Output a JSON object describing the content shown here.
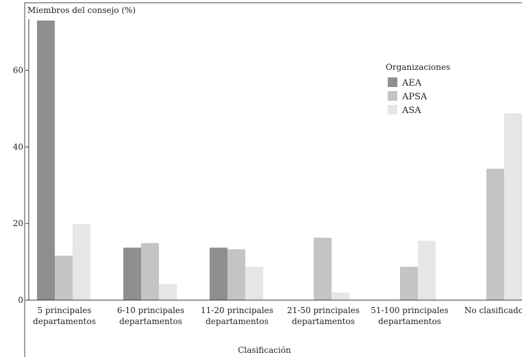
{
  "chart_data": {
    "type": "bar",
    "ylabel": "Miembros del consejo (%)",
    "xlabel": "Clasificación",
    "ylim": [
      0,
      73
    ],
    "yticks": [
      0,
      20,
      40,
      60
    ],
    "legend_placement": "top-right",
    "legend_title": "Organizaciones",
    "categories": [
      [
        "5 principales",
        "departamentos"
      ],
      [
        "6-10 principales",
        "departamentos"
      ],
      [
        "11-20 principales",
        "departamentos"
      ],
      [
        "21-50 principales",
        "departamentos"
      ],
      [
        "51-100 principales",
        "departamentos"
      ],
      [
        "No clasificados",
        ""
      ]
    ],
    "series": [
      {
        "name": "AEA",
        "color": "#8f8f8f",
        "values": [
          73,
          13.7,
          13.7,
          0,
          0,
          0
        ]
      },
      {
        "name": "APSA",
        "color": "#c4c4c4",
        "values": [
          11.6,
          14.9,
          13.3,
          16.3,
          8.7,
          34.3
        ]
      },
      {
        "name": "ASA",
        "color": "#e6e6e6",
        "values": [
          19.9,
          4.2,
          8.7,
          2.0,
          15.5,
          48.8
        ]
      }
    ]
  }
}
